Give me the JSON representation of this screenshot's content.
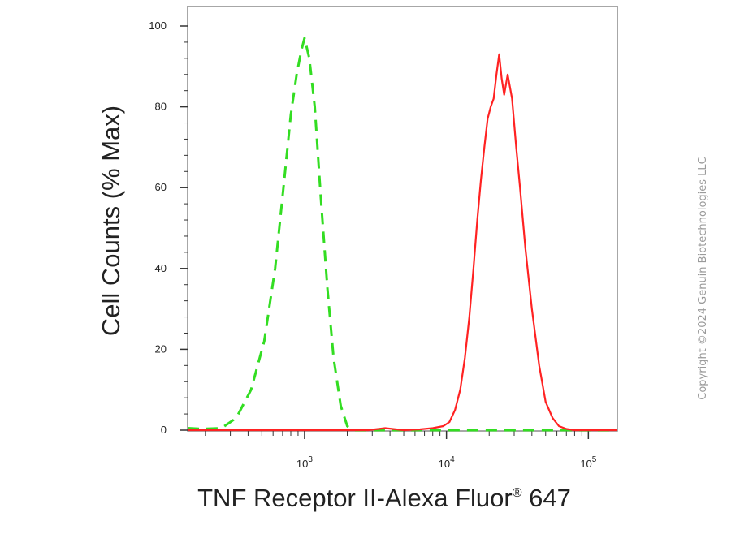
{
  "chart_data": {
    "type": "line",
    "xlabel": "TNF Receptor II-Alexa Fluor® 647",
    "xlabel_main": "TNF Receptor II-Alexa Fluor",
    "xlabel_sup": "®",
    "xlabel_tail": " 647",
    "ylabel": "Cell Counts (% Max)",
    "x_scale": "log",
    "xlim": [
      150,
      160000
    ],
    "ylim": [
      0,
      105
    ],
    "y_ticks": [
      0,
      20,
      40,
      60,
      80,
      100
    ],
    "y_tick_labels": [
      "0",
      "20",
      "40",
      "60",
      "80",
      "100"
    ],
    "x_ticks": [
      {
        "value": 1000,
        "base": "10",
        "exp": "3"
      },
      {
        "value": 10000,
        "base": "10",
        "exp": "4"
      },
      {
        "value": 100000,
        "base": "10",
        "exp": "5"
      }
    ],
    "grid": false,
    "series": [
      {
        "color": "#33dd22",
        "style": "dashed",
        "x": [
          150,
          190,
          260,
          330,
          420,
          520,
          620,
          720,
          800,
          880,
          950,
          1000,
          1080,
          1180,
          1300,
          1450,
          1600,
          1800,
          2000,
          2200,
          2600,
          4000,
          10000,
          100000,
          160000
        ],
        "y": [
          0.5,
          0.3,
          0.5,
          3,
          10,
          22,
          40,
          62,
          78,
          88,
          94,
          97,
          92,
          80,
          58,
          35,
          18,
          6,
          1,
          0,
          0,
          0,
          0,
          0,
          0
        ]
      },
      {
        "color": "#ff2222",
        "style": "solid",
        "x": [
          150,
          1000,
          2800,
          3700,
          5000,
          6500,
          8000,
          9500,
          10500,
          11500,
          12500,
          13500,
          14500,
          15500,
          16500,
          17500,
          18500,
          19500,
          20500,
          21500,
          22500,
          23500,
          24500,
          25500,
          27000,
          29000,
          31000,
          33000,
          36000,
          40000,
          45000,
          50000,
          56000,
          62000,
          70000,
          80000,
          90000,
          100000,
          160000
        ],
        "y": [
          0,
          0,
          0,
          0.5,
          0,
          0.2,
          0.5,
          1,
          2,
          5,
          10,
          18,
          28,
          40,
          52,
          62,
          70,
          77,
          80,
          82,
          88,
          93,
          87,
          83,
          88,
          82,
          70,
          60,
          45,
          30,
          16,
          7,
          3,
          1,
          0.3,
          0,
          0,
          0,
          0
        ]
      }
    ]
  },
  "copyright": "Copyright ©2024 Genuin Biotechnologies LLC"
}
